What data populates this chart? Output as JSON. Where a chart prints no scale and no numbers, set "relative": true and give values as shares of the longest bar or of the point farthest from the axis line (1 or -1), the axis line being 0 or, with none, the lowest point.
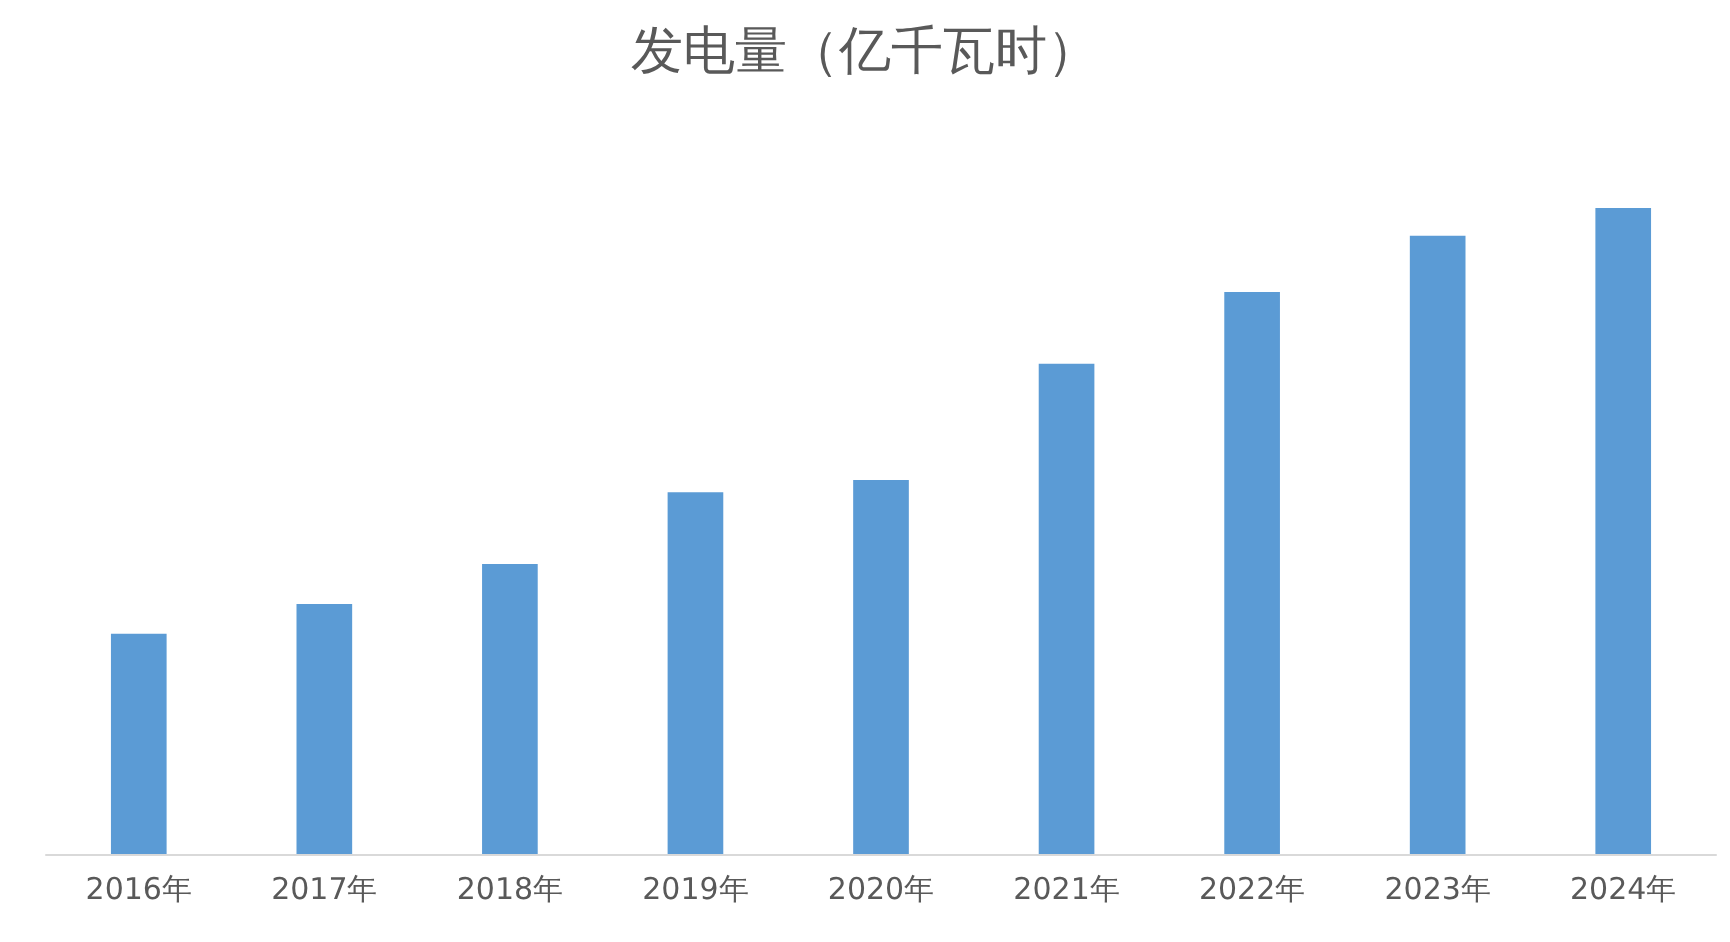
{
  "chart_data": {
    "type": "bar",
    "title": "发电量（亿千瓦时）",
    "relative": true,
    "categories": [
      "2016年",
      "2017年",
      "2018年",
      "2019年",
      "2020年",
      "2021年",
      "2022年",
      "2023年",
      "2024年"
    ],
    "values": [
      0.341,
      0.387,
      0.449,
      0.56,
      0.579,
      0.759,
      0.87,
      0.957,
      1
    ],
    "color": "#5b9bd5"
  }
}
